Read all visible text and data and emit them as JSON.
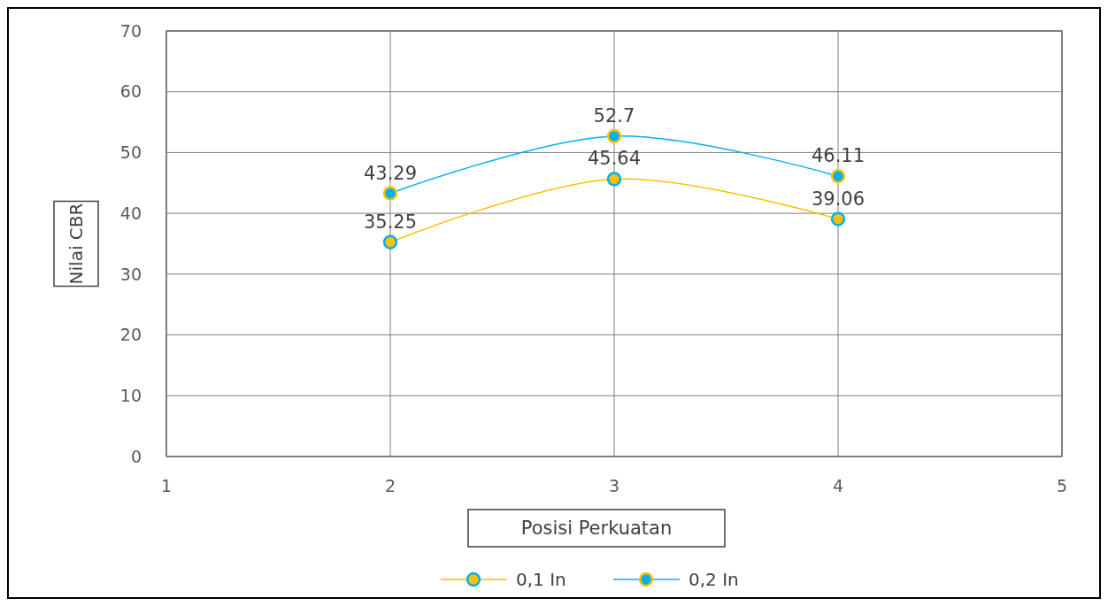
{
  "chart_data": {
    "type": "line",
    "xlabel": "Posisi Perkuatan",
    "ylabel": "Nilai CBR",
    "x": [
      2,
      3,
      4
    ],
    "series": [
      {
        "name": "0,1 In",
        "color": "#ffc000",
        "values": [
          35.25,
          45.64,
          39.06
        ]
      },
      {
        "name": "0,2 In",
        "color": "#00b0f0",
        "values": [
          43.29,
          52.7,
          46.11
        ]
      }
    ],
    "xlim": [
      1,
      5
    ],
    "xticks": [
      1,
      2,
      3,
      4,
      5
    ],
    "ylim": [
      0,
      70
    ],
    "yticks": [
      0,
      10,
      20,
      30,
      40,
      50,
      60,
      70
    ],
    "grid": true,
    "legend": "bottom",
    "marker": "circle",
    "data_labels": true
  }
}
